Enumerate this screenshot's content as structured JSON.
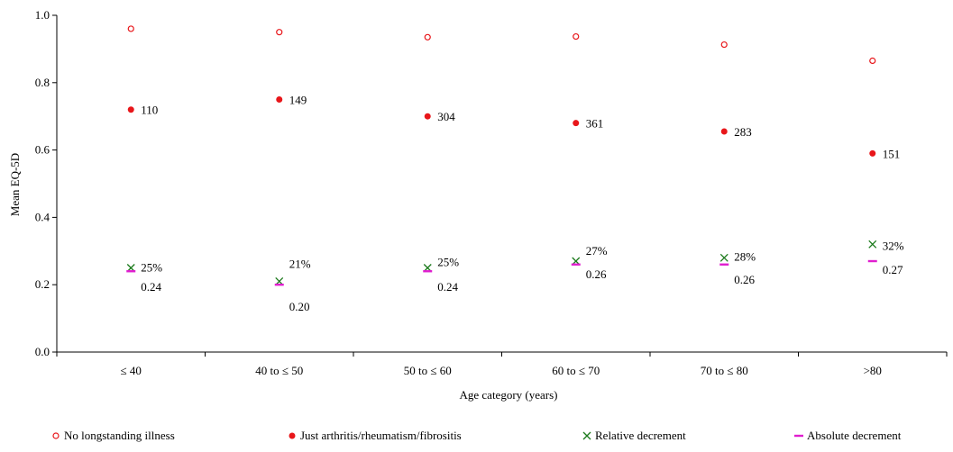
{
  "chart_data": {
    "type": "scatter",
    "title": "",
    "xlabel": "Age category (years)",
    "ylabel": "Mean EQ-5D",
    "ylim": [
      0.0,
      1.0
    ],
    "yticks": [
      "0.0",
      "0.2",
      "0.4",
      "0.6",
      "0.8",
      "1.0"
    ],
    "categories": [
      "≤ 40",
      "40 to ≤ 50",
      "50 to ≤ 60",
      "60 to ≤ 70",
      "70 to ≤ 80",
      ">80"
    ],
    "grid": false,
    "legend_position": "bottom",
    "series": [
      {
        "name": "No longstanding illness",
        "marker": "open-circle",
        "color": "#e8161a",
        "values": [
          0.96,
          0.95,
          0.935,
          0.937,
          0.913,
          0.865
        ]
      },
      {
        "name": "Just arthritis/rheumatism/fibrositis",
        "marker": "filled-circle",
        "color": "#e8161a",
        "values": [
          0.72,
          0.75,
          0.7,
          0.68,
          0.655,
          0.59
        ],
        "labels": [
          "110",
          "149",
          "304",
          "361",
          "283",
          "151"
        ]
      },
      {
        "name": "Relative decrement",
        "marker": "x",
        "color": "#1c7a1c",
        "values": [
          0.25,
          0.21,
          0.25,
          0.27,
          0.28,
          0.32
        ],
        "labels": [
          "25%",
          "21%",
          "25%",
          "27%",
          "28%",
          "32%"
        ]
      },
      {
        "name": "Absolute decrement",
        "marker": "dash",
        "color": "#e01ecf",
        "values": [
          0.24,
          0.2,
          0.24,
          0.26,
          0.26,
          0.27
        ],
        "labels": [
          "0.24",
          "0.20",
          "0.24",
          "0.26",
          "0.26",
          "0.27"
        ]
      }
    ]
  }
}
